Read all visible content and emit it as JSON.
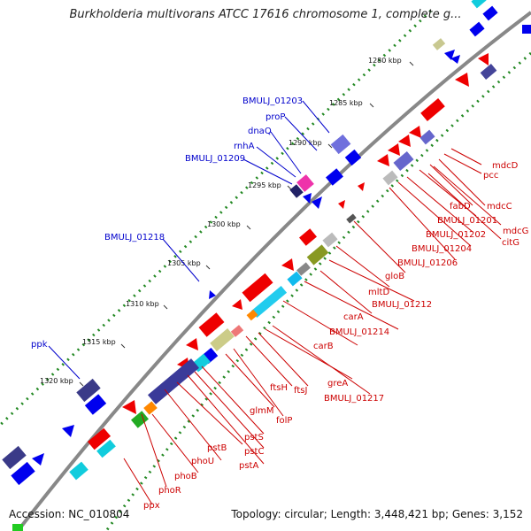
{
  "title": "Burkholderia multivorans ATCC 17616 chromosome 1, complete g...",
  "accession": "Accession: NC_010804",
  "summary": "Topology: circular; Length: 3,448,421 bp; Genes: 3,152",
  "colors": {
    "backbone": "#888888",
    "gc_skew_dots": "#228822",
    "forward_cds": "#0000ee",
    "reverse_cds": "#ee0000",
    "forward_label": "#0000cc",
    "reverse_label": "#cc0000"
  },
  "kbp_ticks": [
    {
      "label": "1280 kbp"
    },
    {
      "label": "1285 kbp"
    },
    {
      "label": "1290 kbp"
    },
    {
      "label": "1295 kbp"
    },
    {
      "label": "1300 kbp"
    },
    {
      "label": "1305 kbp"
    },
    {
      "label": "1310 kbp"
    },
    {
      "label": "1315 kbp"
    },
    {
      "label": "1320 kbp"
    }
  ],
  "forward_gene_labels": [
    {
      "text": "BMULJ_01203"
    },
    {
      "text": "proP"
    },
    {
      "text": "dnaQ"
    },
    {
      "text": "rnhA"
    },
    {
      "text": "BMULJ_01209"
    },
    {
      "text": "BMULJ_01218"
    },
    {
      "text": "ppk"
    }
  ],
  "reverse_gene_labels": [
    {
      "text": "mdcD"
    },
    {
      "text": "pcc"
    },
    {
      "text": "mdcC"
    },
    {
      "text": "fabD"
    },
    {
      "text": "mdcG"
    },
    {
      "text": "BMULJ_01201"
    },
    {
      "text": "citG"
    },
    {
      "text": "BMULJ_01202"
    },
    {
      "text": "BMULJ_01204"
    },
    {
      "text": "BMULJ_01206"
    },
    {
      "text": "gloB"
    },
    {
      "text": "mltD"
    },
    {
      "text": "BMULJ_01212"
    },
    {
      "text": "carA"
    },
    {
      "text": "BMULJ_01214"
    },
    {
      "text": "carB"
    },
    {
      "text": "greA"
    },
    {
      "text": "ftsH"
    },
    {
      "text": "ftsJ"
    },
    {
      "text": "BMULJ_01217"
    },
    {
      "text": "glmM"
    },
    {
      "text": "folP"
    },
    {
      "text": "pstS"
    },
    {
      "text": "pstC"
    },
    {
      "text": "pstB"
    },
    {
      "text": "pstA"
    },
    {
      "text": "phoU"
    },
    {
      "text": "phoB"
    },
    {
      "text": "phoR"
    },
    {
      "text": "ppx"
    }
  ]
}
